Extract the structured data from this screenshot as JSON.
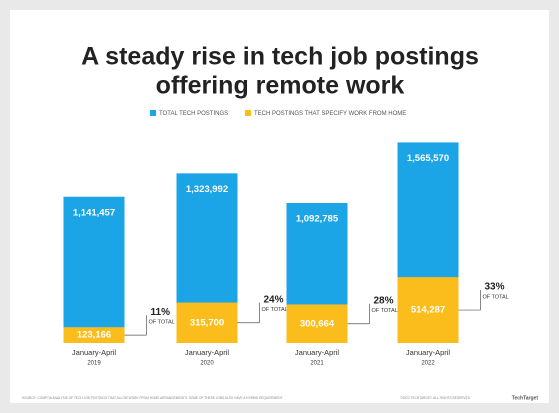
{
  "chart_data": {
    "type": "bar",
    "title": [
      "A steady rise in tech job postings",
      "offering remote work"
    ],
    "categories": [
      [
        "January-April",
        "2019"
      ],
      [
        "January-April",
        "2020"
      ],
      [
        "January-April",
        "2021"
      ],
      [
        "January-April",
        "2022"
      ]
    ],
    "series": [
      {
        "name": "TOTAL TECH POSTINGS",
        "color": "#1ba4e6",
        "values": [
          1141457,
          1323992,
          1092785,
          1565570
        ],
        "value_labels": [
          "1,141,457",
          "1,323,992",
          "1,092,785",
          "1,565,570"
        ]
      },
      {
        "name": "TECH POSTINGS THAT SPECIFY WORK FROM HOME",
        "color": "#fbbd1c",
        "values": [
          123166,
          315700,
          300664,
          514287
        ],
        "value_labels": [
          "123,166",
          "315,700",
          "300,664",
          "514,287"
        ]
      }
    ],
    "annotations": [
      "11%",
      "24%",
      "28%",
      "33%"
    ],
    "annotation_note": "OF TOTAL",
    "ylim": [
      0,
      1600000
    ],
    "source": "SOURCE: COMPTIA ANALYSIS OF TECH JOB POSTINGS THAT ALLOW WORK FROM HOME ARRANGEMENTS. SOME OF THESE JOBS ALSO HAVE A HYBRID REQUIREMENT.",
    "copyright": "©2022 TECHTARGET. ALL RIGHTS RESERVED",
    "brand": "TechTarget"
  }
}
